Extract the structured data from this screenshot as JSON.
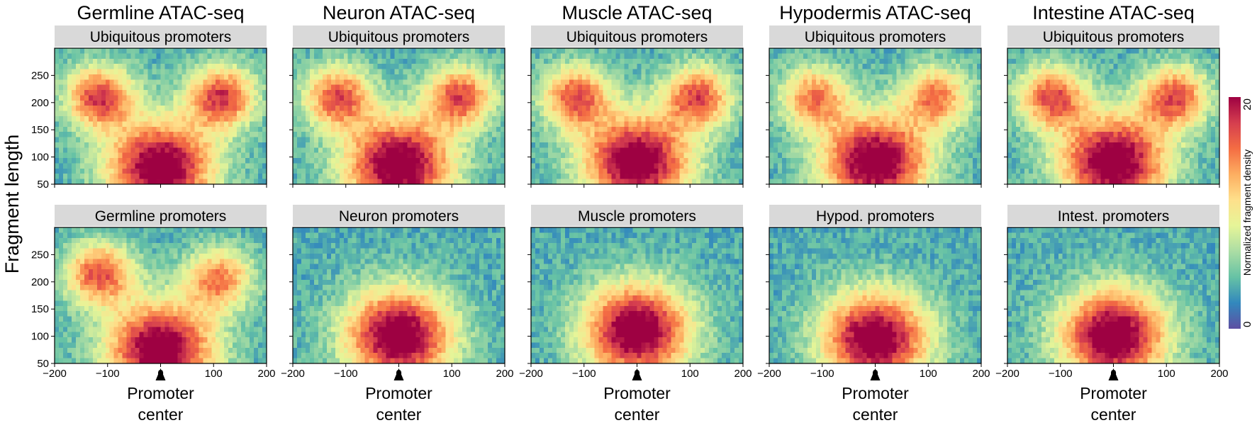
{
  "ylabel": "Fragment length",
  "colorbar": {
    "label": "Normalized fragment density",
    "min_label": "0",
    "max_label": "20",
    "colors": [
      "#5e4fa2",
      "#3288bd",
      "#66c2a5",
      "#abdda4",
      "#e6f598",
      "#fee08b",
      "#fdae61",
      "#f46d43",
      "#d53e4f",
      "#9e0142"
    ]
  },
  "marker_label": "Promoter center",
  "chart_data": [
    {
      "type": "heatmap",
      "title": "Germline ATAC-seq",
      "panel_label": "Ubiquitous promoters",
      "xlim": [
        -200,
        200
      ],
      "ylim": [
        50,
        300
      ],
      "xticks": [
        -200,
        -100,
        0,
        100,
        200
      ],
      "yticks": [
        50,
        100,
        150,
        200,
        250
      ],
      "peaks": [
        {
          "x": -115,
          "y": 210,
          "intensity": 0.75
        },
        {
          "x": 115,
          "y": 210,
          "intensity": 0.75
        },
        {
          "x": 0,
          "y": 80,
          "intensity": 1.0
        }
      ]
    },
    {
      "type": "heatmap",
      "title": "Neuron ATAC-seq",
      "panel_label": "Ubiquitous promoters",
      "xlim": [
        -200,
        200
      ],
      "ylim": [
        50,
        300
      ],
      "xticks": [
        -200,
        -100,
        0,
        100,
        200
      ],
      "yticks": [
        50,
        100,
        150,
        200,
        250
      ],
      "peaks": [
        {
          "x": -115,
          "y": 210,
          "intensity": 0.7
        },
        {
          "x": 115,
          "y": 210,
          "intensity": 0.7
        },
        {
          "x": 0,
          "y": 85,
          "intensity": 1.0
        }
      ]
    },
    {
      "type": "heatmap",
      "title": "Muscle ATAC-seq",
      "panel_label": "Ubiquitous promoters",
      "xlim": [
        -200,
        200
      ],
      "ylim": [
        50,
        300
      ],
      "xticks": [
        -200,
        -100,
        0,
        100,
        200
      ],
      "yticks": [
        50,
        100,
        150,
        200,
        250
      ],
      "peaks": [
        {
          "x": -115,
          "y": 210,
          "intensity": 0.7
        },
        {
          "x": 115,
          "y": 210,
          "intensity": 0.7
        },
        {
          "x": 0,
          "y": 90,
          "intensity": 1.0
        }
      ]
    },
    {
      "type": "heatmap",
      "title": "Hypodermis ATAC-seq",
      "panel_label": "Ubiquitous promoters",
      "xlim": [
        -200,
        200
      ],
      "ylim": [
        50,
        300
      ],
      "xticks": [
        -200,
        -100,
        0,
        100,
        200
      ],
      "yticks": [
        50,
        100,
        150,
        200,
        250
      ],
      "peaks": [
        {
          "x": -115,
          "y": 210,
          "intensity": 0.6
        },
        {
          "x": 115,
          "y": 210,
          "intensity": 0.6
        },
        {
          "x": 0,
          "y": 90,
          "intensity": 1.0
        }
      ]
    },
    {
      "type": "heatmap",
      "title": "Intestine ATAC-seq",
      "panel_label": "Ubiquitous promoters",
      "xlim": [
        -200,
        200
      ],
      "ylim": [
        50,
        300
      ],
      "xticks": [
        -200,
        -100,
        0,
        100,
        200
      ],
      "yticks": [
        50,
        100,
        150,
        200,
        250
      ],
      "peaks": [
        {
          "x": -115,
          "y": 210,
          "intensity": 0.7
        },
        {
          "x": 115,
          "y": 210,
          "intensity": 0.7
        },
        {
          "x": 0,
          "y": 90,
          "intensity": 1.0
        }
      ]
    },
    {
      "type": "heatmap",
      "title": "",
      "panel_label": "Germline promoters",
      "xlim": [
        -200,
        200
      ],
      "ylim": [
        50,
        300
      ],
      "xticks": [
        -200,
        -100,
        0,
        100,
        200
      ],
      "yticks": [
        50,
        100,
        150,
        200,
        250
      ],
      "peaks": [
        {
          "x": -115,
          "y": 215,
          "intensity": 0.7
        },
        {
          "x": 110,
          "y": 205,
          "intensity": 0.6
        },
        {
          "x": 0,
          "y": 75,
          "intensity": 1.0
        }
      ]
    },
    {
      "type": "heatmap",
      "title": "",
      "panel_label": "Neuron promoters",
      "xlim": [
        -200,
        200
      ],
      "ylim": [
        50,
        300
      ],
      "xticks": [
        -200,
        -100,
        0,
        100,
        200
      ],
      "yticks": [
        50,
        100,
        150,
        200,
        250
      ],
      "peaks": [
        {
          "x": 0,
          "y": 100,
          "intensity": 1.0
        }
      ]
    },
    {
      "type": "heatmap",
      "title": "",
      "panel_label": "Muscle promoters",
      "xlim": [
        -200,
        200
      ],
      "ylim": [
        50,
        300
      ],
      "xticks": [
        -200,
        -100,
        0,
        100,
        200
      ],
      "yticks": [
        50,
        100,
        150,
        200,
        250
      ],
      "peaks": [
        {
          "x": 0,
          "y": 110,
          "intensity": 1.0
        }
      ]
    },
    {
      "type": "heatmap",
      "title": "",
      "panel_label": "Hypod. promoters",
      "xlim": [
        -200,
        200
      ],
      "ylim": [
        50,
        300
      ],
      "xticks": [
        -200,
        -100,
        0,
        100,
        200
      ],
      "yticks": [
        50,
        100,
        150,
        200,
        250
      ],
      "peaks": [
        {
          "x": 0,
          "y": 95,
          "intensity": 1.0
        }
      ]
    },
    {
      "type": "heatmap",
      "title": "",
      "panel_label": "Intest. promoters",
      "xlim": [
        -200,
        200
      ],
      "ylim": [
        50,
        300
      ],
      "xticks": [
        -200,
        -100,
        0,
        100,
        200
      ],
      "yticks": [
        50,
        100,
        150,
        200,
        250
      ],
      "peaks": [
        {
          "x": 0,
          "y": 100,
          "intensity": 1.0
        }
      ]
    }
  ]
}
